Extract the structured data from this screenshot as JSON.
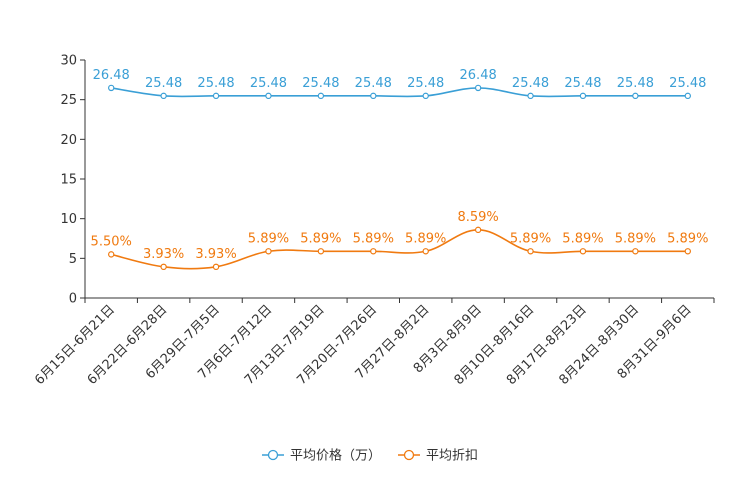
{
  "chart_data": {
    "type": "line",
    "categories": [
      "6月15日-6月21日",
      "6月22日-6月28日",
      "6月29日-7月5日",
      "7月6日-7月12日",
      "7月13日-7月19日",
      "7月20日-7月26日",
      "7月27日-8月2日",
      "8月3日-8月9日",
      "8月10日-8月16日",
      "8月17日-8月23日",
      "8月24日-8月30日",
      "8月31日-9月6日"
    ],
    "ylim": [
      0,
      30
    ],
    "yticks": [
      0,
      5,
      10,
      15,
      20,
      25,
      30
    ],
    "series": [
      {
        "name": "平均价格（万）",
        "color": "#3a9fd6",
        "values": [
          26.48,
          25.48,
          25.48,
          25.48,
          25.48,
          25.48,
          25.48,
          26.48,
          25.48,
          25.48,
          25.48,
          25.48
        ],
        "labels": [
          "26.48",
          "25.48",
          "25.48",
          "25.48",
          "25.48",
          "25.48",
          "25.48",
          "26.48",
          "25.48",
          "25.48",
          "25.48",
          "25.48"
        ]
      },
      {
        "name": "平均折扣",
        "color": "#f07a10",
        "values": [
          5.5,
          3.93,
          3.93,
          5.89,
          5.89,
          5.89,
          5.89,
          8.59,
          5.89,
          5.89,
          5.89,
          5.89
        ],
        "labels": [
          "5.50%",
          "3.93%",
          "3.93%",
          "5.89%",
          "5.89%",
          "5.89%",
          "5.89%",
          "8.59%",
          "5.89%",
          "5.89%",
          "5.89%",
          "5.89%"
        ]
      }
    ],
    "legend": "bottom-center"
  }
}
